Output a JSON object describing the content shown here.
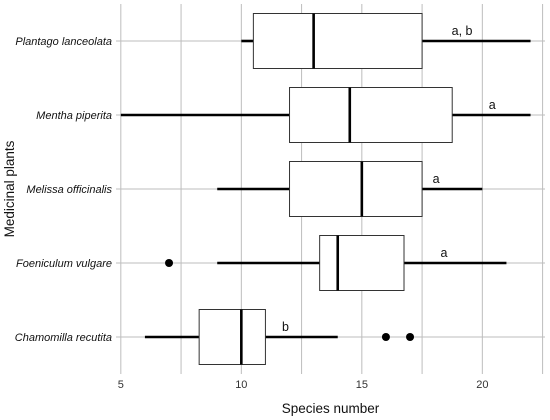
{
  "chart_data": {
    "type": "boxplot",
    "orientation": "horizontal",
    "xlabel": "Species number",
    "ylabel": "Medicinal plants",
    "xlim": [
      4.8,
      22.6
    ],
    "xticks": [
      5,
      10,
      15,
      20
    ],
    "minor_grid": [
      7.5,
      12.5,
      17.5,
      22.5
    ],
    "grid": true,
    "categories": [
      "Plantago lanceolata",
      "Mentha piperita",
      "Melissa officinalis",
      "Foeniculum vulgare",
      "Chamomilla recutita"
    ],
    "series": [
      {
        "category": "Plantago lanceolata",
        "whisker_low": 10,
        "q1": 10.5,
        "median": 13,
        "q3": 17.5,
        "whisker_high": 22,
        "outliers": [],
        "letter": "a, b"
      },
      {
        "category": "Mentha piperita",
        "whisker_low": 5,
        "q1": 12,
        "median": 14.5,
        "q3": 18.75,
        "whisker_high": 22,
        "outliers": [],
        "letter": "a"
      },
      {
        "category": "Melissa officinalis",
        "whisker_low": 9,
        "q1": 12,
        "median": 15,
        "q3": 17.5,
        "whisker_high": 20,
        "outliers": [],
        "letter": "a"
      },
      {
        "category": "Foeniculum vulgare",
        "whisker_low": 9,
        "q1": 13.25,
        "median": 14,
        "q3": 16.75,
        "whisker_high": 21,
        "outliers": [
          7
        ],
        "letter": "a"
      },
      {
        "category": "Chamomilla recutita",
        "whisker_low": 6,
        "q1": 8.25,
        "median": 10,
        "q3": 11,
        "whisker_high": 14,
        "outliers": [
          16,
          17
        ],
        "letter": "b"
      }
    ]
  }
}
